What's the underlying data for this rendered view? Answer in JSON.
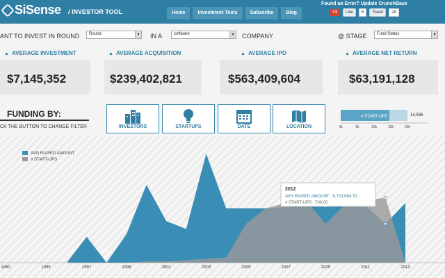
{
  "header": {
    "logo": "SiSense",
    "tagline": "/ INVESTOR TOOL",
    "nav": [
      "Home",
      "Investment Tools",
      "Subscribe",
      "Blog"
    ],
    "crunch_link": "Found an Error? Update CrunchBase",
    "social": {
      "gplus": "+1",
      "like": "Like",
      "like_count": "6",
      "tweet": "Tweet",
      "tweet_count": "28"
    }
  },
  "filters": {
    "want_label": "ANT TO INVEST IN ROUND",
    "round_value": "Round",
    "in_a_label": "IN A",
    "industry_value": "software",
    "company_label": "COMPANY",
    "stage_label": "@ STAGE",
    "stage_value": "Fund Status"
  },
  "kpis": [
    {
      "label": "AVERAGE INVESTMENT",
      "value": "$7,145,352"
    },
    {
      "label": "AVERAGE ACQUISITION",
      "value": "$239,402,821"
    },
    {
      "label": "AVERAGE IPO",
      "value": "$563,409,604"
    },
    {
      "label": "AVERAGE NET RETURN",
      "value": "$63,191,128"
    }
  ],
  "funding": {
    "title": "FUNDING BY:",
    "hint": "CK THE BUTTON TO CHANGE FILTER",
    "buttons": [
      {
        "label": "INVESTORS",
        "icon": "buildings-icon"
      },
      {
        "label": "STARTUPS",
        "icon": "lightbulb-icon"
      },
      {
        "label": "DATE",
        "icon": "calendar-icon"
      },
      {
        "label": "LOCATION",
        "icon": "map-icon"
      }
    ]
  },
  "mini_bar": {
    "label": "# START-UPS",
    "value": 14596,
    "value_label": "14,596",
    "max": 20000,
    "ticks": [
      "0k",
      "5k",
      "10k",
      "15k",
      "20k"
    ]
  },
  "chart_data": {
    "type": "area",
    "x": [
      1996,
      1997,
      1998,
      1999,
      2000,
      2001,
      2002,
      2003,
      2004,
      2005,
      2006,
      2007,
      2008,
      2009,
      2010,
      2011,
      2012,
      2013
    ],
    "x_tick_labels": [
      "1960",
      "1995",
      "1997",
      "1999",
      "2001",
      "2003",
      "2005",
      "2007",
      "2009",
      "2011",
      "2013"
    ],
    "series": [
      {
        "name": "AVG RAISED AMOUNT",
        "color": "#3a8db5",
        "values": [
          0,
          2,
          0,
          2.2,
          6,
          3.2,
          2.6,
          8.4,
          4.2,
          4.2,
          4.2,
          4.3,
          4.4,
          4.3,
          4.5,
          4.4,
          3.0,
          4.6
        ]
      },
      {
        "name": "# START-UPS",
        "color": "#9a9a9a",
        "values": [
          0,
          0,
          0,
          0,
          0.1,
          0.1,
          0.2,
          0.3,
          0.4,
          3.0,
          4.2,
          4.6,
          4.8,
          3.0,
          4.5,
          4.8,
          5.0,
          0
        ]
      }
    ],
    "ylim": [
      0,
      9
    ],
    "legend": "top-left",
    "tooltip": {
      "year": "2012",
      "line1": "AVG RAISED AMOUNT : 6,723,684.70",
      "line2": "# START-UPS : 700.00"
    }
  },
  "toolbar": [
    "refresh-icon",
    "close-icon",
    "link-icon"
  ],
  "colors": {
    "brand": "#2f7ea3",
    "series_blue": "#3a8db5",
    "series_gray": "#9a9a9a"
  }
}
